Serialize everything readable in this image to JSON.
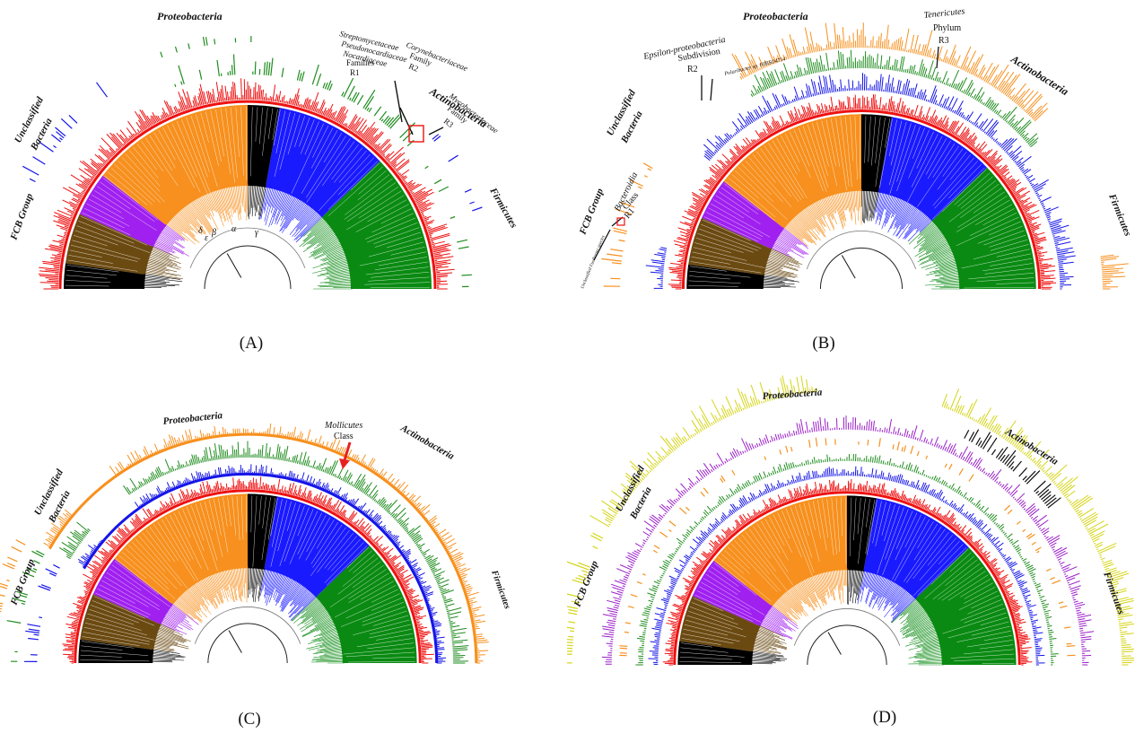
{
  "colors": {
    "proteobacteria": "#f7901e",
    "actinobacteria": "#1a1aff",
    "firmicutes": "#0a8a12",
    "fcb": "#6b4a12",
    "unclassified": "#a020f0",
    "other": "#000000",
    "ring_red": "#ee1111",
    "ring_green": "#1f8c1f",
    "ring_blue": "#1515e8",
    "ring_orange": "#f7901e",
    "ring_purple": "#9a1fc8",
    "ring_yellow": "#d4d416",
    "ring_black": "#111111"
  },
  "panels": [
    {
      "caption": "(A)",
      "phyla": {
        "proteobacteria": "Proteobacteria",
        "actinobacteria": "Actinobacteria",
        "firmicutes": "Firmicutes",
        "fcb": "FCB Group",
        "unclassified_line1": "Unclassified",
        "unclassified_line2": "Bacteria"
      },
      "annotations": {
        "r1_lines": [
          "Streptomycetaceae",
          "Pseudonocardiaceae",
          "Nocardiaceae",
          "Families",
          "R1"
        ],
        "r2_lines": [
          "Corynebacteriaceae",
          "Family",
          "R2"
        ],
        "r3_lines": [
          "Mycobacteriaceae",
          "Family",
          "R3"
        ],
        "greek": [
          "δ",
          "ε",
          "β",
          "α",
          "γ"
        ]
      }
    },
    {
      "caption": "(B)",
      "phyla": {
        "proteobacteria": "Proteobacteria",
        "actinobacteria": "Actinobacteria",
        "firmicutes": "Firmicutes",
        "fcb": "FCB Group",
        "unclassified_line1": "Unclassified",
        "unclassified_line2": "Bacteria"
      },
      "annotations": {
        "epsilon_lines": [
          "Epsilon-proteobacteria",
          "Subdivision",
          "R2"
        ],
        "polaribacter": "Polaribacter sp. HIBSO4714",
        "tenericutes_lines": [
          "Tenericutes",
          "Phylum",
          "R3"
        ],
        "bacteroidia_lines": [
          "Bacteroidia",
          "Class",
          "R1"
        ],
        "fusibacter": "Unclassified Fusibacter species"
      }
    },
    {
      "caption": "(C)",
      "phyla": {
        "proteobacteria": "Proteobacteria",
        "actinobacteria": "Actinobacteria",
        "firmicutes": "Firmicutes",
        "fcb": "FCB Group",
        "unclassified_line1": "Unclassified",
        "unclassified_line2": "Bacteria"
      },
      "annotations": {
        "mollicutes_lines": [
          "Mollicutes",
          "Class"
        ]
      }
    },
    {
      "caption": "(D)",
      "phyla": {
        "proteobacteria": "Proteobacteria",
        "actinobacteria": "Actinobacteria",
        "firmicutes": "Firmicutes",
        "fcb": "FCB Group",
        "unclassified_line1": "Unclassified",
        "unclassified_line2": "Bacteria"
      },
      "annotations": {}
    }
  ]
}
